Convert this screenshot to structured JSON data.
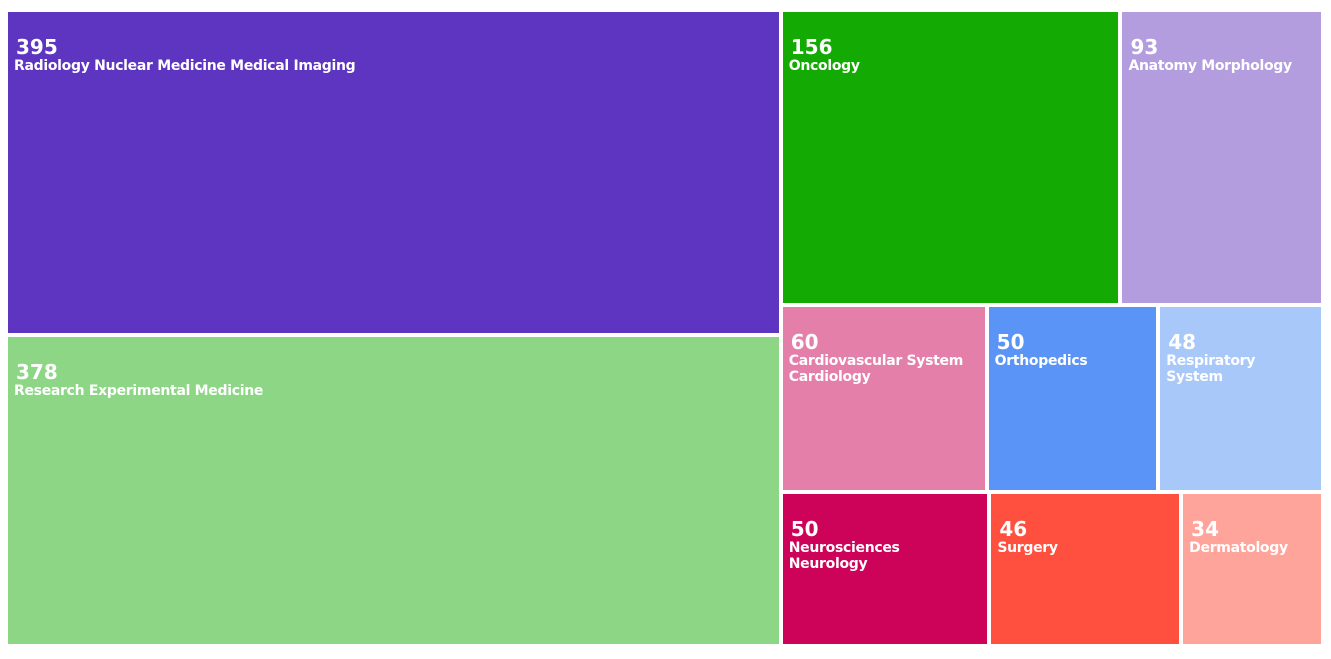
{
  "chart_data": {
    "type": "treemap",
    "categories": [
      "Radiology Nuclear Medicine Medical Imaging",
      "Research Experimental Medicine",
      "Oncology",
      "Anatomy Morphology",
      "Cardiovascular System Cardiology",
      "Orthopedics",
      "Respiratory System",
      "Neurosciences Neurology",
      "Surgery",
      "Dermatology"
    ],
    "values": [
      395,
      378,
      156,
      93,
      60,
      50,
      48,
      50,
      46,
      34
    ],
    "colors": [
      "#5e35c0",
      "#8dd685",
      "#13ab03",
      "#b39ddf",
      "#e47faa",
      "#5b94f7",
      "#a8c8fa",
      "#cc0358",
      "#ff4f3e",
      "#ffa49a"
    ]
  }
}
